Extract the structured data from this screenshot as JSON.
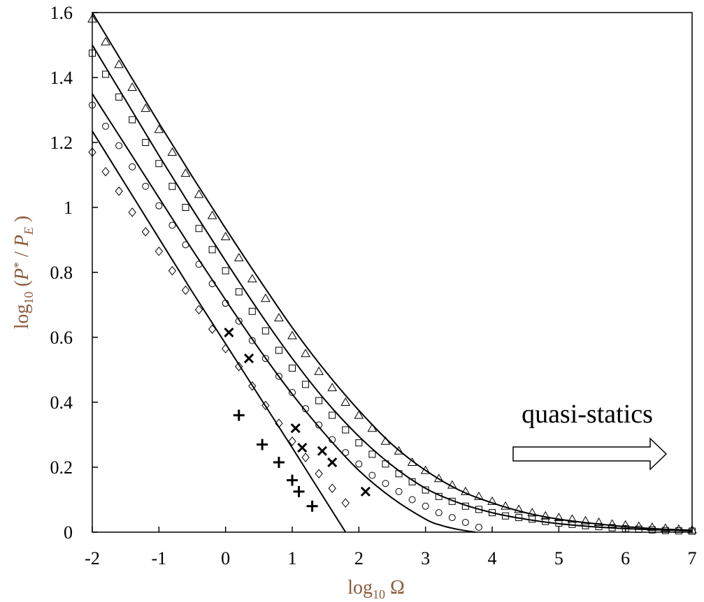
{
  "chart_data": {
    "type": "scatter",
    "xlabel": "log10 Ω",
    "ylabel": "log10 (P* / PE)",
    "xlim": [
      -2,
      7
    ],
    "ylim": [
      0,
      1.6
    ],
    "xticks": [
      -2,
      -1,
      0,
      1,
      2,
      3,
      4,
      5,
      6,
      7
    ],
    "yticks": [
      0,
      0.2,
      0.4,
      0.6,
      0.8,
      1,
      1.2,
      1.4,
      1.6
    ],
    "xtick_labels": [
      "-2",
      "-1",
      "0",
      "1",
      "2",
      "3",
      "4",
      "5",
      "6",
      "7"
    ],
    "ytick_labels": [
      "0",
      "0.2",
      "0.4",
      "0.6",
      "0.8",
      "1",
      "1.2",
      "1.4",
      "1.6"
    ],
    "grid": false,
    "annotation": {
      "text": "quasi-statics",
      "arrow": "right"
    },
    "series": [
      {
        "marker": "triangle",
        "x": [
          -2.0,
          -1.8,
          -1.6,
          -1.4,
          -1.2,
          -1.0,
          -0.8,
          -0.6,
          -0.4,
          -0.2,
          0.0,
          0.2,
          0.4,
          0.6,
          0.8,
          1.0,
          1.2,
          1.4,
          1.6,
          1.8,
          2.0,
          2.2,
          2.4,
          2.6,
          2.8,
          3.0,
          3.2,
          3.4,
          3.6,
          3.8,
          4.0,
          4.2,
          4.4,
          4.6,
          4.8,
          5.0,
          5.2,
          5.4,
          5.6,
          5.8,
          6.0,
          6.2,
          6.4,
          6.6,
          6.8,
          7.0
        ],
        "y": [
          1.58,
          1.51,
          1.44,
          1.37,
          1.305,
          1.24,
          1.17,
          1.105,
          1.04,
          0.975,
          0.91,
          0.845,
          0.78,
          0.72,
          0.66,
          0.605,
          0.55,
          0.495,
          0.445,
          0.4,
          0.36,
          0.32,
          0.28,
          0.25,
          0.215,
          0.19,
          0.165,
          0.145,
          0.125,
          0.11,
          0.095,
          0.08,
          0.07,
          0.06,
          0.05,
          0.045,
          0.04,
          0.035,
          0.03,
          0.025,
          0.022,
          0.018,
          0.015,
          0.012,
          0.009,
          0.007
        ]
      },
      {
        "marker": "square",
        "x": [
          -2.0,
          -1.8,
          -1.6,
          -1.4,
          -1.2,
          -1.0,
          -0.8,
          -0.6,
          -0.4,
          -0.2,
          0.0,
          0.2,
          0.4,
          0.6,
          0.8,
          1.0,
          1.2,
          1.4,
          1.6,
          1.8,
          2.0,
          2.2,
          2.4,
          2.6,
          2.8,
          3.0,
          3.2,
          3.4,
          3.6,
          3.8,
          4.0,
          4.2,
          4.4,
          4.6,
          4.8,
          5.0,
          5.2,
          5.4,
          5.6,
          5.8,
          6.0,
          6.2,
          6.4,
          6.6,
          6.8,
          7.0
        ],
        "y": [
          1.475,
          1.41,
          1.34,
          1.27,
          1.2,
          1.135,
          1.065,
          1.0,
          0.935,
          0.87,
          0.805,
          0.74,
          0.68,
          0.62,
          0.56,
          0.505,
          0.455,
          0.405,
          0.36,
          0.315,
          0.275,
          0.24,
          0.21,
          0.18,
          0.155,
          0.13,
          0.11,
          0.095,
          0.08,
          0.07,
          0.06,
          0.05,
          0.045,
          0.04,
          0.033,
          0.028,
          0.024,
          0.02,
          0.017,
          0.014,
          0.011,
          0.009,
          0.007,
          0.005,
          0.004,
          0.003
        ]
      },
      {
        "marker": "circle",
        "x": [
          -2.0,
          -1.8,
          -1.6,
          -1.4,
          -1.2,
          -1.0,
          -0.8,
          -0.6,
          -0.4,
          -0.2,
          0.0,
          0.2,
          0.4,
          0.6,
          0.8,
          1.0,
          1.2,
          1.4,
          1.6,
          1.8,
          2.0,
          2.2,
          2.4,
          2.6,
          2.8,
          3.0,
          3.2,
          3.4,
          3.6,
          3.8
        ],
        "y": [
          1.315,
          1.25,
          1.19,
          1.125,
          1.065,
          1.005,
          0.945,
          0.885,
          0.825,
          0.765,
          0.705,
          0.65,
          0.59,
          0.535,
          0.48,
          0.43,
          0.38,
          0.33,
          0.285,
          0.245,
          0.21,
          0.175,
          0.15,
          0.125,
          0.1,
          0.08,
          0.06,
          0.045,
          0.03,
          0.015
        ]
      },
      {
        "marker": "diamond",
        "x": [
          -2.0,
          -1.8,
          -1.6,
          -1.4,
          -1.2,
          -1.0,
          -0.8,
          -0.6,
          -0.4,
          -0.2,
          0.0,
          0.2,
          0.4,
          0.6,
          0.8,
          1.0,
          1.2,
          1.4,
          1.6,
          1.8
        ],
        "y": [
          1.17,
          1.11,
          1.05,
          0.985,
          0.925,
          0.865,
          0.805,
          0.745,
          0.685,
          0.625,
          0.565,
          0.51,
          0.45,
          0.39,
          0.335,
          0.28,
          0.23,
          0.18,
          0.135,
          0.09
        ]
      },
      {
        "marker": "x",
        "x": [
          0.05,
          0.35,
          1.05,
          1.15,
          1.45,
          1.6,
          2.1
        ],
        "y": [
          0.615,
          0.535,
          0.32,
          0.26,
          0.25,
          0.215,
          0.125
        ]
      },
      {
        "marker": "plus",
        "x": [
          0.2,
          0.55,
          0.8,
          1.0,
          1.1,
          1.3
        ],
        "y": [
          0.36,
          0.27,
          0.215,
          0.16,
          0.125,
          0.08
        ]
      }
    ],
    "curves": [
      {
        "x": [
          -2.0,
          -1.5,
          -1.0,
          -0.5,
          0.0,
          0.5,
          1.0,
          1.5,
          2.0,
          2.5,
          3.0,
          3.5,
          4.0,
          4.5,
          5.0,
          5.5,
          6.0,
          6.5,
          7.0
        ],
        "y": [
          1.6,
          1.43,
          1.26,
          1.095,
          0.935,
          0.78,
          0.63,
          0.495,
          0.375,
          0.27,
          0.19,
          0.13,
          0.09,
          0.06,
          0.04,
          0.027,
          0.017,
          0.01,
          0.006
        ]
      },
      {
        "x": [
          -2.0,
          -1.5,
          -1.0,
          -0.5,
          0.0,
          0.5,
          1.0,
          1.5,
          2.0,
          2.5,
          3.0,
          3.5,
          4.0,
          4.5,
          5.0,
          5.5,
          6.0,
          6.5,
          7.0
        ],
        "y": [
          1.5,
          1.33,
          1.16,
          0.995,
          0.835,
          0.68,
          0.535,
          0.405,
          0.295,
          0.205,
          0.135,
          0.09,
          0.06,
          0.04,
          0.026,
          0.017,
          0.011,
          0.007,
          0.004
        ]
      },
      {
        "x": [
          -2.0,
          -1.5,
          -1.0,
          -0.5,
          0.0,
          0.5,
          1.0,
          1.5,
          2.0,
          2.5,
          3.0,
          3.25,
          3.5,
          3.75
        ],
        "y": [
          1.35,
          1.19,
          1.03,
          0.87,
          0.715,
          0.565,
          0.425,
          0.3,
          0.19,
          0.105,
          0.04,
          0.02,
          0.008,
          0.0
        ]
      },
      {
        "x": [
          -2.0,
          -1.5,
          -1.0,
          -0.5,
          0.0,
          0.5,
          1.0,
          1.4,
          1.8
        ],
        "y": [
          1.235,
          1.07,
          0.905,
          0.74,
          0.58,
          0.42,
          0.26,
          0.13,
          0.0
        ]
      }
    ]
  }
}
